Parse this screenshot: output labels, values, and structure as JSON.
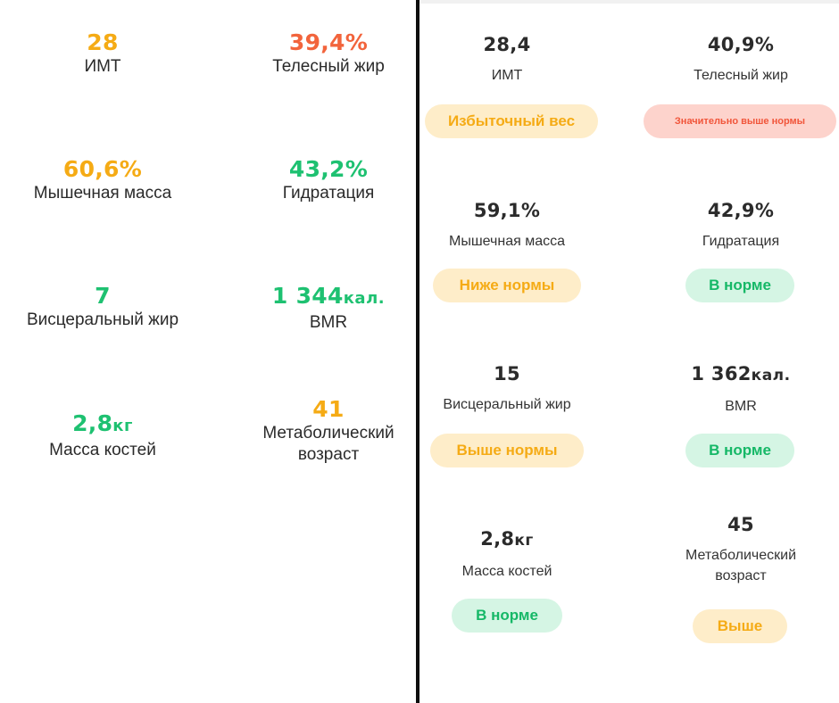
{
  "colors": {
    "orange": "#f5ab15",
    "red": "#f2643c",
    "green": "#1ec171",
    "badge_warn_bg": "#feedc9",
    "badge_ok_bg": "#d5f5e4",
    "badge_bad_bg": "#fdd3cc"
  },
  "left": {
    "bmi": {
      "value": "28",
      "label": "ИМТ",
      "status_color": "orange"
    },
    "body_fat": {
      "value": "39,4%",
      "label": "Телесный жир",
      "status_color": "red"
    },
    "muscle": {
      "value": "60,6%",
      "label": "Мышечная масса",
      "status_color": "orange"
    },
    "hydration": {
      "value": "43,2%",
      "label": "Гидратация",
      "status_color": "green"
    },
    "visceral": {
      "value": "7",
      "label": "Висцеральный жир",
      "status_color": "green"
    },
    "bmr": {
      "value": "1 344",
      "unit": "кал.",
      "label": "BMR",
      "status_color": "green"
    },
    "bone": {
      "value": "2,8",
      "unit": "кг",
      "label": "Масса костей",
      "status_color": "green"
    },
    "meta_age": {
      "value": "41",
      "label_line1": "Метаболический",
      "label_line2": "возраст",
      "status_color": "orange"
    }
  },
  "right": {
    "bmi": {
      "value": "28,4",
      "label": "ИМТ",
      "badge": "Избыточный вес",
      "badge_type": "warn"
    },
    "body_fat": {
      "value": "40,9%",
      "label": "Телесный жир",
      "badge": "Значительно выше нормы",
      "badge_type": "bad"
    },
    "muscle": {
      "value": "59,1%",
      "label": "Мышечная масса",
      "badge": "Ниже нормы",
      "badge_type": "warn"
    },
    "hydration": {
      "value": "42,9%",
      "label": "Гидратация",
      "badge": "В норме",
      "badge_type": "ok"
    },
    "visceral": {
      "value": "15",
      "label": "Висцеральный жир",
      "badge": "Выше нормы",
      "badge_type": "warn"
    },
    "bmr": {
      "value": "1 362",
      "unit": "кал.",
      "label": "BMR",
      "badge": "В норме",
      "badge_type": "ok"
    },
    "bone": {
      "value": "2,8",
      "unit": "кг",
      "label": "Масса костей",
      "badge": "В норме",
      "badge_type": "ok"
    },
    "meta_age": {
      "value": "45",
      "label_line1": "Метаболический",
      "label_line2": "возраст",
      "badge": "Выше",
      "badge_type": "warn"
    }
  }
}
